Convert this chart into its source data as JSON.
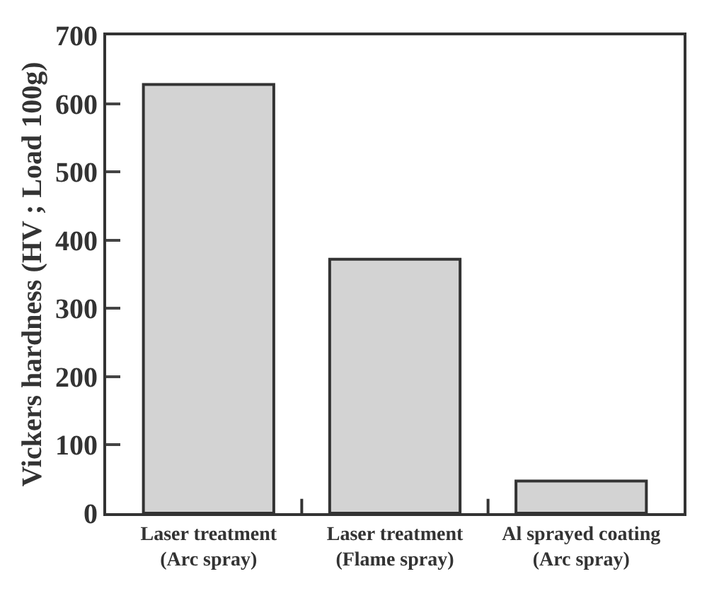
{
  "chart_data": {
    "type": "bar",
    "ylabel": "Vickers hardness (HV ; Load 100g)",
    "categories": [
      "Laser treatment\n(Arc spray)",
      "Laser treatment\n(Flame spray)",
      "Al sprayed coating\n(Arc spray)"
    ],
    "values": [
      628,
      372,
      47
    ],
    "color": "#d3d3d3",
    "ylim": [
      0,
      700
    ],
    "yticks": [
      0,
      100,
      200,
      300,
      400,
      500,
      600,
      700
    ]
  }
}
